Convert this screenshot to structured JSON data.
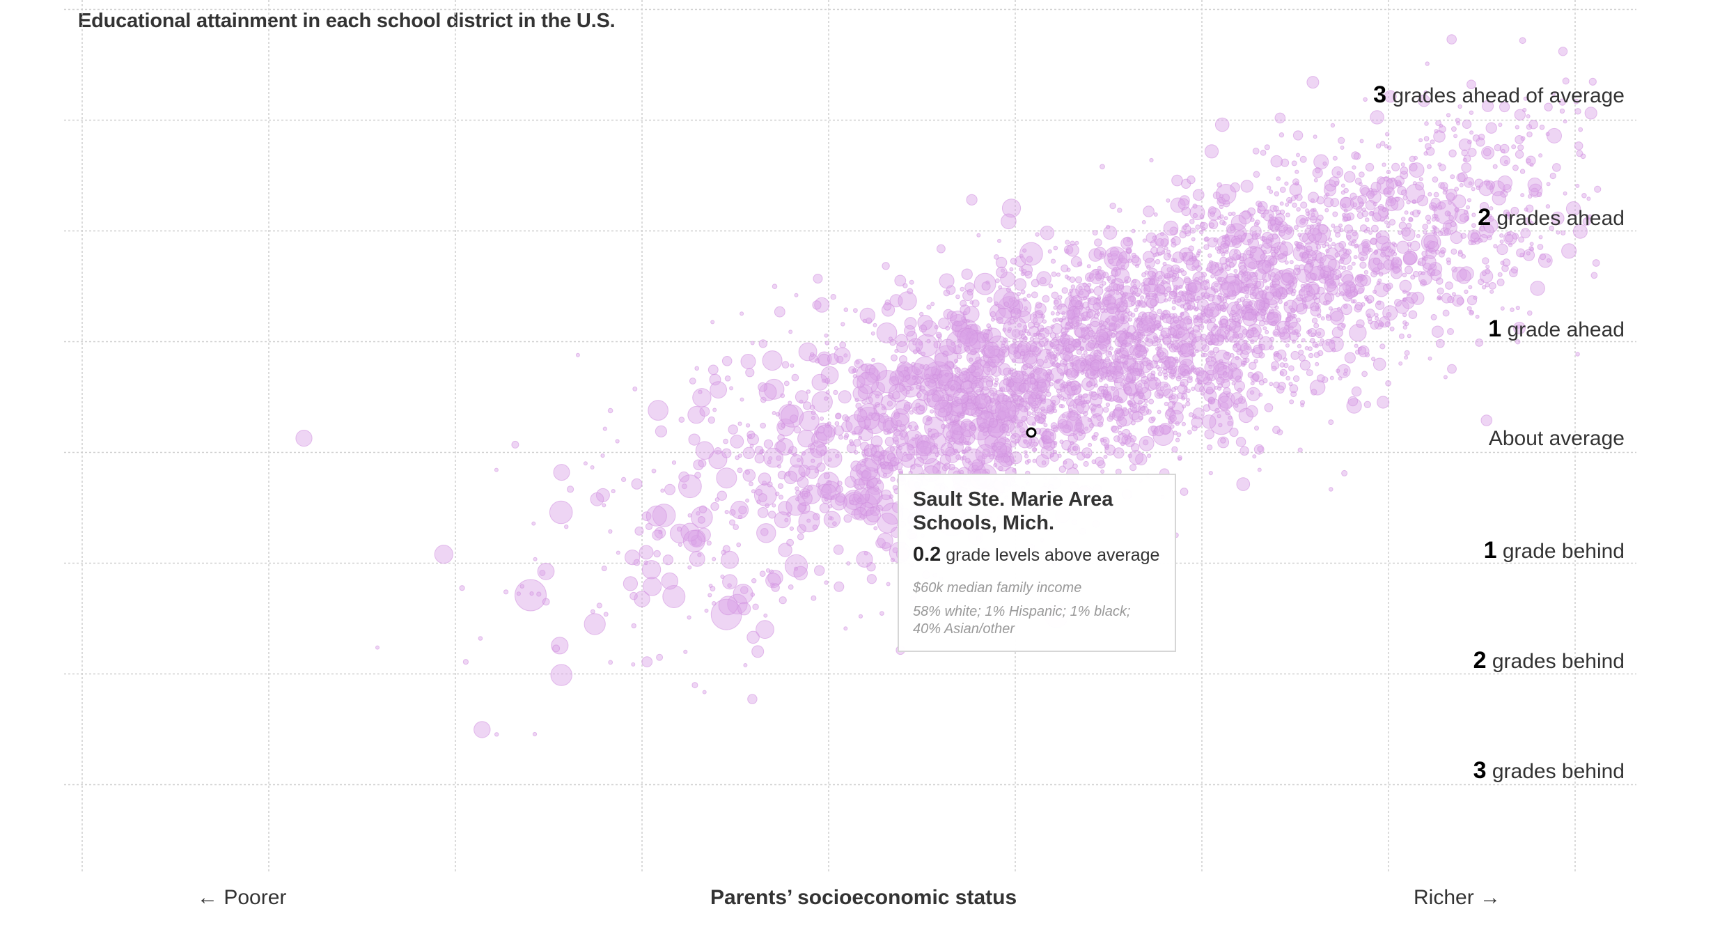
{
  "chart_data": {
    "type": "scatter",
    "title": "Educational attainment in each school district in the U.S.",
    "xlabel": "Parents’ socioeconomic status",
    "x_left_label": "← Poorer",
    "x_right_label": "Richer →",
    "ylabel": "",
    "ylim": [
      -3.5,
      3.5
    ],
    "y_tick_labels": [
      {
        "value": 3,
        "bold": "3",
        "text": "grades ahead of average"
      },
      {
        "value": 2,
        "bold": "2",
        "text": "grades ahead"
      },
      {
        "value": 1,
        "bold": "1",
        "text": "grade ahead"
      },
      {
        "value": 0,
        "bold": "",
        "text": "About average"
      },
      {
        "value": -1,
        "bold": "1",
        "text": "grade behind"
      },
      {
        "value": -2,
        "bold": "2",
        "text": "grades behind"
      },
      {
        "value": -3,
        "bold": "3",
        "text": "grades behind"
      }
    ],
    "grid": true,
    "point_color": "#d9a2e6",
    "trend": {
      "slope": 0.62,
      "intercept": 0.12,
      "x_range": [
        -4.0,
        3.1
      ]
    },
    "highlighted_point": {
      "x": 0.05,
      "y": 0.2
    }
  },
  "tooltip": {
    "name": "Sault Ste. Marie Area Schools, Mich.",
    "value": "0.2",
    "value_text": "grade levels above average",
    "income": "$60k median family income",
    "demographics": "58% white; 1% Hispanic; 1% black; 40% Asian/other"
  }
}
